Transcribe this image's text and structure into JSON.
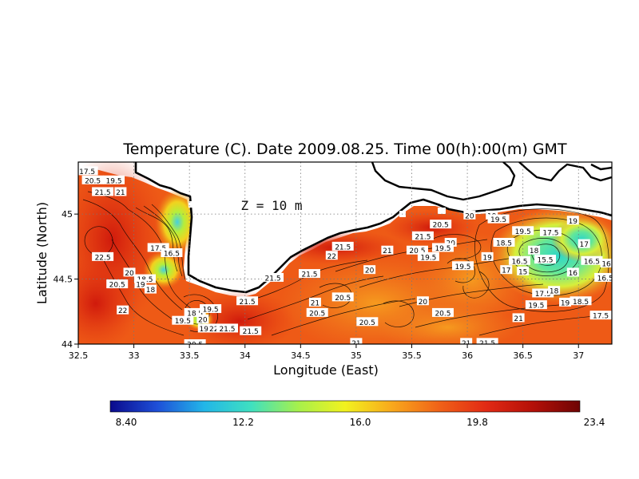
{
  "title": "Temperature (C). Date 2009.08.25. Time 00(h):00(m) GMT",
  "depth_label": "Z = 10 m",
  "x_axis": {
    "label": "Longitude (East)",
    "ticks": [
      "32.5",
      "33",
      "33.5",
      "34",
      "34.5",
      "35",
      "35.5",
      "36",
      "36.5",
      "37"
    ],
    "range": [
      32.5,
      37.3
    ]
  },
  "y_axis": {
    "label": "Latitude (North)",
    "ticks": [
      "44",
      "44.5",
      "45"
    ],
    "range": [
      44.0,
      45.4
    ]
  },
  "colorbar": {
    "ticks": [
      "8.40",
      "12.2",
      "16.0",
      "19.8",
      "23.4"
    ],
    "colors": [
      "#0a0a8c",
      "#1e4fd8",
      "#22b6e8",
      "#3fe0c0",
      "#a6f04c",
      "#f2f21e",
      "#f8a81c",
      "#f06218",
      "#e22a14",
      "#b41008",
      "#6e0404"
    ]
  },
  "contour_labels": [
    {
      "text": "17.5",
      "lon": 32.58,
      "lat": 45.33
    },
    {
      "text": "20.5",
      "lon": 32.63,
      "lat": 45.26
    },
    {
      "text": "19.5",
      "lon": 32.82,
      "lat": 45.26
    },
    {
      "text": "21.5",
      "lon": 32.72,
      "lat": 45.17
    },
    {
      "text": "21",
      "lon": 32.88,
      "lat": 45.17
    },
    {
      "text": "22.5",
      "lon": 32.72,
      "lat": 44.67
    },
    {
      "text": "17.5",
      "lon": 33.22,
      "lat": 44.74
    },
    {
      "text": "16.5",
      "lon": 33.34,
      "lat": 44.7
    },
    {
      "text": "20",
      "lon": 32.96,
      "lat": 44.55
    },
    {
      "text": "18.5",
      "lon": 33.1,
      "lat": 44.5
    },
    {
      "text": "19",
      "lon": 33.06,
      "lat": 44.46
    },
    {
      "text": "20.5",
      "lon": 32.85,
      "lat": 44.46
    },
    {
      "text": "18",
      "lon": 33.15,
      "lat": 44.42
    },
    {
      "text": "22",
      "lon": 32.9,
      "lat": 44.26
    },
    {
      "text": "18.5",
      "lon": 33.55,
      "lat": 44.24
    },
    {
      "text": "19.5",
      "lon": 33.69,
      "lat": 44.27
    },
    {
      "text": "19.5",
      "lon": 33.44,
      "lat": 44.18
    },
    {
      "text": "20",
      "lon": 33.62,
      "lat": 44.19
    },
    {
      "text": "19",
      "lon": 33.63,
      "lat": 44.12
    },
    {
      "text": "22",
      "lon": 33.72,
      "lat": 44.12
    },
    {
      "text": "21.5",
      "lon": 33.84,
      "lat": 44.12
    },
    {
      "text": "21.5",
      "lon": 34.05,
      "lat": 44.1
    },
    {
      "text": "20.5",
      "lon": 33.55,
      "lat": 44.0
    },
    {
      "text": "21.5",
      "lon": 34.02,
      "lat": 44.33
    },
    {
      "text": "21.5",
      "lon": 34.25,
      "lat": 44.51
    },
    {
      "text": "21.5",
      "lon": 34.58,
      "lat": 44.54
    },
    {
      "text": "22",
      "lon": 34.78,
      "lat": 44.68
    },
    {
      "text": "21.5",
      "lon": 34.88,
      "lat": 44.75
    },
    {
      "text": "21",
      "lon": 35.28,
      "lat": 44.72
    },
    {
      "text": "20.5",
      "lon": 35.55,
      "lat": 44.72
    },
    {
      "text": "21.5",
      "lon": 35.6,
      "lat": 44.83
    },
    {
      "text": "20",
      "lon": 35.12,
      "lat": 44.57
    },
    {
      "text": "21",
      "lon": 34.63,
      "lat": 44.32
    },
    {
      "text": "20.5",
      "lon": 34.88,
      "lat": 44.36
    },
    {
      "text": "20.5",
      "lon": 34.65,
      "lat": 44.24
    },
    {
      "text": "20.5",
      "lon": 35.1,
      "lat": 44.17
    },
    {
      "text": "20",
      "lon": 35.6,
      "lat": 44.33
    },
    {
      "text": "20.5",
      "lon": 35.78,
      "lat": 44.24
    },
    {
      "text": "21",
      "lon": 35.0,
      "lat": 44.01
    },
    {
      "text": "21",
      "lon": 35.99,
      "lat": 44.01
    },
    {
      "text": "21.5",
      "lon": 36.18,
      "lat": 44.01
    },
    {
      "text": "20.5",
      "lon": 35.76,
      "lat": 44.92
    },
    {
      "text": "20",
      "lon": 35.85,
      "lat": 44.78
    },
    {
      "text": "19.5",
      "lon": 35.78,
      "lat": 44.74
    },
    {
      "text": "20",
      "lon": 36.02,
      "lat": 44.99
    },
    {
      "text": "19",
      "lon": 36.22,
      "lat": 44.99
    },
    {
      "text": "19.5",
      "lon": 36.28,
      "lat": 44.96
    },
    {
      "text": "19.5",
      "lon": 36.5,
      "lat": 44.87
    },
    {
      "text": "19",
      "lon": 36.95,
      "lat": 44.95
    },
    {
      "text": "17.5",
      "lon": 36.75,
      "lat": 44.86
    },
    {
      "text": "18.5",
      "lon": 36.33,
      "lat": 44.78
    },
    {
      "text": "18",
      "lon": 36.6,
      "lat": 44.72
    },
    {
      "text": "17",
      "lon": 37.05,
      "lat": 44.77
    },
    {
      "text": "16.5",
      "lon": 36.47,
      "lat": 44.64
    },
    {
      "text": "15.5",
      "lon": 36.7,
      "lat": 44.65
    },
    {
      "text": "16.5",
      "lon": 37.12,
      "lat": 44.64
    },
    {
      "text": "16",
      "lon": 37.25,
      "lat": 44.62
    },
    {
      "text": "17",
      "lon": 36.35,
      "lat": 44.57
    },
    {
      "text": "15",
      "lon": 36.5,
      "lat": 44.56
    },
    {
      "text": "16",
      "lon": 36.95,
      "lat": 44.55
    },
    {
      "text": "16.5",
      "lon": 37.24,
      "lat": 44.51
    },
    {
      "text": "19.5",
      "lon": 35.96,
      "lat": 44.6
    },
    {
      "text": "19",
      "lon": 36.18,
      "lat": 44.67
    },
    {
      "text": "17.5",
      "lon": 36.68,
      "lat": 44.39
    },
    {
      "text": "18",
      "lon": 36.78,
      "lat": 44.41
    },
    {
      "text": "19.5",
      "lon": 36.62,
      "lat": 44.3
    },
    {
      "text": "19",
      "lon": 36.88,
      "lat": 44.32
    },
    {
      "text": "18.5",
      "lon": 37.02,
      "lat": 44.33
    },
    {
      "text": "17.5",
      "lon": 37.2,
      "lat": 44.22
    },
    {
      "text": "21",
      "lon": 36.46,
      "lat": 44.2
    },
    {
      "text": "19.5",
      "lon": 35.65,
      "lat": 44.67
    }
  ]
}
